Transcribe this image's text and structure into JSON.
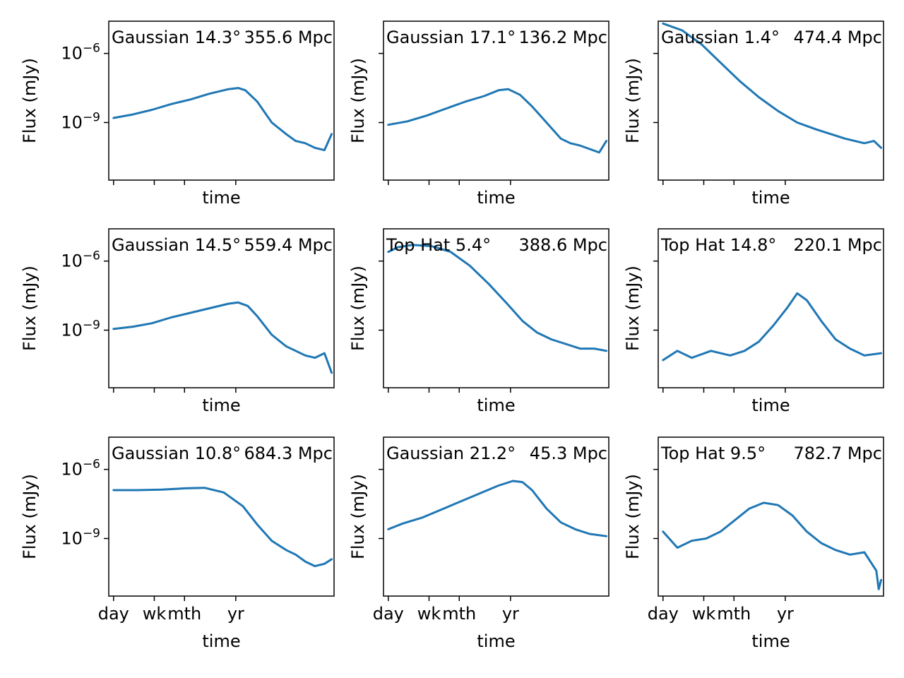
{
  "figure": {
    "line_color": "#1f77b4"
  },
  "chart_data": [
    {
      "type": "line",
      "title": "",
      "annotations": [
        "Gaussian 14.3°",
        "355.6 Mpc"
      ],
      "xlabel": "time",
      "ylabel": "Flux (mJy)",
      "x_scale": "log",
      "y_scale": "log",
      "x_ticks": [
        "day",
        "wk",
        "mth",
        "yr"
      ],
      "x_tick_labels_visible": false,
      "y_ticks": [
        "10^-6",
        "10^-9"
      ],
      "y_tick_labels_visible": true,
      "ylim": [
        "1e-11.5",
        "1e-4.6"
      ],
      "grid": false,
      "x_time": [
        "day",
        "wk",
        "mth",
        "yr"
      ],
      "points": [
        [
          0.0,
          -8.8
        ],
        [
          0.4,
          -8.65
        ],
        [
          0.8,
          -8.45
        ],
        [
          1.2,
          -8.2
        ],
        [
          1.6,
          -8.0
        ],
        [
          2.0,
          -7.75
        ],
        [
          2.4,
          -7.55
        ],
        [
          2.6,
          -7.5
        ],
        [
          2.75,
          -7.6
        ],
        [
          3.0,
          -8.1
        ],
        [
          3.3,
          -9.0
        ],
        [
          3.6,
          -9.5
        ],
        [
          3.8,
          -9.8
        ],
        [
          4.0,
          -9.9
        ],
        [
          4.2,
          -10.1
        ],
        [
          4.4,
          -10.2
        ],
        [
          4.55,
          -9.5
        ]
      ]
    },
    {
      "type": "line",
      "title": "",
      "annotations": [
        "Gaussian 17.1°",
        "136.2 Mpc"
      ],
      "xlabel": "time",
      "ylabel": "Flux (mJy)",
      "x_scale": "log",
      "y_scale": "log",
      "x_ticks": [
        "day",
        "wk",
        "mth",
        "yr"
      ],
      "x_tick_labels_visible": false,
      "y_ticks": [
        "10^-6",
        "10^-9"
      ],
      "y_tick_labels_visible": false,
      "ylim": [
        "1e-11.5",
        "1e-4.6"
      ],
      "grid": false,
      "points": [
        [
          0.0,
          -9.1
        ],
        [
          0.4,
          -8.95
        ],
        [
          0.8,
          -8.7
        ],
        [
          1.2,
          -8.4
        ],
        [
          1.6,
          -8.1
        ],
        [
          2.0,
          -7.85
        ],
        [
          2.3,
          -7.6
        ],
        [
          2.5,
          -7.55
        ],
        [
          2.75,
          -7.8
        ],
        [
          3.0,
          -8.3
        ],
        [
          3.3,
          -9.0
        ],
        [
          3.6,
          -9.7
        ],
        [
          3.8,
          -9.9
        ],
        [
          4.0,
          -10.0
        ],
        [
          4.2,
          -10.15
        ],
        [
          4.4,
          -10.3
        ],
        [
          4.55,
          -9.8
        ]
      ]
    },
    {
      "type": "line",
      "title": "",
      "annotations": [
        "Gaussian 1.4°",
        "474.4 Mpc"
      ],
      "xlabel": "time",
      "ylabel": "Flux (mJy)",
      "x_scale": "log",
      "y_scale": "log",
      "x_ticks": [
        "day",
        "wk",
        "mth",
        "yr"
      ],
      "x_tick_labels_visible": false,
      "y_ticks": [
        "10^-6",
        "10^-9"
      ],
      "y_tick_labels_visible": false,
      "ylim": [
        "1e-11.5",
        "1e-4.6"
      ],
      "grid": false,
      "points": [
        [
          0.0,
          -4.7
        ],
        [
          0.4,
          -5.0
        ],
        [
          0.8,
          -5.6
        ],
        [
          1.2,
          -6.4
        ],
        [
          1.6,
          -7.2
        ],
        [
          2.0,
          -7.9
        ],
        [
          2.4,
          -8.5
        ],
        [
          2.8,
          -9.0
        ],
        [
          3.2,
          -9.3
        ],
        [
          3.5,
          -9.5
        ],
        [
          3.8,
          -9.7
        ],
        [
          4.0,
          -9.8
        ],
        [
          4.2,
          -9.9
        ],
        [
          4.4,
          -9.8
        ],
        [
          4.55,
          -10.1
        ]
      ]
    },
    {
      "type": "line",
      "title": "",
      "annotations": [
        "Gaussian 14.5°",
        "559.4 Mpc"
      ],
      "xlabel": "time",
      "ylabel": "Flux (mJy)",
      "x_scale": "log",
      "y_scale": "log",
      "x_ticks": [
        "day",
        "wk",
        "mth",
        "yr"
      ],
      "x_tick_labels_visible": false,
      "y_ticks": [
        "10^-6",
        "10^-9"
      ],
      "y_tick_labels_visible": true,
      "ylim": [
        "1e-11.5",
        "1e-4.6"
      ],
      "grid": false,
      "points": [
        [
          0.0,
          -8.95
        ],
        [
          0.4,
          -8.85
        ],
        [
          0.8,
          -8.7
        ],
        [
          1.2,
          -8.45
        ],
        [
          1.6,
          -8.25
        ],
        [
          2.0,
          -8.05
        ],
        [
          2.4,
          -7.85
        ],
        [
          2.6,
          -7.8
        ],
        [
          2.8,
          -7.95
        ],
        [
          3.0,
          -8.4
        ],
        [
          3.3,
          -9.2
        ],
        [
          3.6,
          -9.7
        ],
        [
          3.8,
          -9.9
        ],
        [
          4.0,
          -10.1
        ],
        [
          4.2,
          -10.2
        ],
        [
          4.4,
          -10.0
        ],
        [
          4.55,
          -10.85
        ]
      ]
    },
    {
      "type": "line",
      "title": "",
      "annotations": [
        "Top Hat 5.4°",
        "388.6 Mpc"
      ],
      "xlabel": "time",
      "ylabel": "Flux (mJy)",
      "x_scale": "log",
      "y_scale": "log",
      "x_ticks": [
        "day",
        "wk",
        "mth",
        "yr"
      ],
      "x_tick_labels_visible": false,
      "y_ticks": [
        "10^-6",
        "10^-9"
      ],
      "y_tick_labels_visible": false,
      "ylim": [
        "1e-11.5",
        "1e-4.6"
      ],
      "grid": false,
      "points": [
        [
          0.0,
          -5.6
        ],
        [
          0.2,
          -5.4
        ],
        [
          0.5,
          -5.3
        ],
        [
          0.9,
          -5.35
        ],
        [
          1.3,
          -5.6
        ],
        [
          1.7,
          -6.2
        ],
        [
          2.1,
          -7.0
        ],
        [
          2.5,
          -7.9
        ],
        [
          2.8,
          -8.6
        ],
        [
          3.1,
          -9.1
        ],
        [
          3.4,
          -9.4
        ],
        [
          3.7,
          -9.6
        ],
        [
          4.0,
          -9.8
        ],
        [
          4.3,
          -9.8
        ],
        [
          4.55,
          -9.9
        ]
      ]
    },
    {
      "type": "line",
      "title": "",
      "annotations": [
        "Top Hat 14.8°",
        "220.1 Mpc"
      ],
      "xlabel": "time",
      "ylabel": "Flux (mJy)",
      "x_scale": "log",
      "y_scale": "log",
      "x_ticks": [
        "day",
        "wk",
        "mth",
        "yr"
      ],
      "x_tick_labels_visible": false,
      "y_ticks": [
        "10^-6",
        "10^-9"
      ],
      "y_tick_labels_visible": false,
      "ylim": [
        "1e-11.5",
        "1e-4.6"
      ],
      "grid": false,
      "points": [
        [
          0.0,
          -10.3
        ],
        [
          0.3,
          -9.9
        ],
        [
          0.6,
          -10.2
        ],
        [
          1.0,
          -9.9
        ],
        [
          1.4,
          -10.1
        ],
        [
          1.7,
          -9.9
        ],
        [
          2.0,
          -9.5
        ],
        [
          2.3,
          -8.8
        ],
        [
          2.6,
          -8.0
        ],
        [
          2.8,
          -7.4
        ],
        [
          3.0,
          -7.7
        ],
        [
          3.3,
          -8.6
        ],
        [
          3.6,
          -9.4
        ],
        [
          3.9,
          -9.8
        ],
        [
          4.2,
          -10.1
        ],
        [
          4.55,
          -10.0
        ]
      ]
    },
    {
      "type": "line",
      "title": "",
      "annotations": [
        "Gaussian 10.8°",
        "684.3 Mpc"
      ],
      "xlabel": "time",
      "ylabel": "Flux (mJy)",
      "x_scale": "log",
      "y_scale": "log",
      "x_ticks": [
        "day",
        "wk",
        "mth",
        "yr"
      ],
      "x_tick_labels_visible": true,
      "y_ticks": [
        "10^-6",
        "10^-9"
      ],
      "y_tick_labels_visible": true,
      "ylim": [
        "1e-11.5",
        "1e-4.6"
      ],
      "grid": false,
      "points": [
        [
          0.0,
          -6.9
        ],
        [
          0.5,
          -6.9
        ],
        [
          1.0,
          -6.88
        ],
        [
          1.5,
          -6.82
        ],
        [
          1.9,
          -6.8
        ],
        [
          2.3,
          -7.0
        ],
        [
          2.7,
          -7.6
        ],
        [
          3.0,
          -8.4
        ],
        [
          3.3,
          -9.1
        ],
        [
          3.6,
          -9.5
        ],
        [
          3.8,
          -9.7
        ],
        [
          4.0,
          -10.0
        ],
        [
          4.2,
          -10.2
        ],
        [
          4.4,
          -10.1
        ],
        [
          4.55,
          -9.9
        ]
      ]
    },
    {
      "type": "line",
      "title": "",
      "annotations": [
        "Gaussian 21.2°",
        "45.3 Mpc"
      ],
      "xlabel": "time",
      "ylabel": "Flux (mJy)",
      "x_scale": "log",
      "y_scale": "log",
      "x_ticks": [
        "day",
        "wk",
        "mth",
        "yr"
      ],
      "x_tick_labels_visible": true,
      "y_ticks": [
        "10^-6",
        "10^-9"
      ],
      "y_tick_labels_visible": false,
      "ylim": [
        "1e-11.5",
        "1e-4.6"
      ],
      "grid": false,
      "points": [
        [
          0.0,
          -8.6
        ],
        [
          0.3,
          -8.35
        ],
        [
          0.7,
          -8.1
        ],
        [
          1.1,
          -7.75
        ],
        [
          1.5,
          -7.4
        ],
        [
          1.9,
          -7.05
        ],
        [
          2.3,
          -6.7
        ],
        [
          2.6,
          -6.5
        ],
        [
          2.8,
          -6.55
        ],
        [
          3.0,
          -6.9
        ],
        [
          3.3,
          -7.7
        ],
        [
          3.6,
          -8.3
        ],
        [
          3.9,
          -8.6
        ],
        [
          4.2,
          -8.8
        ],
        [
          4.55,
          -8.9
        ]
      ]
    },
    {
      "type": "line",
      "title": "",
      "annotations": [
        "Top Hat 9.5°",
        "782.7 Mpc"
      ],
      "xlabel": "time",
      "ylabel": "Flux (mJy)",
      "x_scale": "log",
      "y_scale": "log",
      "x_ticks": [
        "day",
        "wk",
        "mth",
        "yr"
      ],
      "x_tick_labels_visible": true,
      "y_ticks": [
        "10^-6",
        "10^-9"
      ],
      "y_tick_labels_visible": false,
      "ylim": [
        "1e-11.5",
        "1e-4.6"
      ],
      "grid": false,
      "points": [
        [
          0.0,
          -8.7
        ],
        [
          0.3,
          -9.4
        ],
        [
          0.6,
          -9.1
        ],
        [
          0.9,
          -9.0
        ],
        [
          1.2,
          -8.7
        ],
        [
          1.5,
          -8.2
        ],
        [
          1.8,
          -7.7
        ],
        [
          2.1,
          -7.45
        ],
        [
          2.4,
          -7.55
        ],
        [
          2.7,
          -8.0
        ],
        [
          3.0,
          -8.7
        ],
        [
          3.3,
          -9.2
        ],
        [
          3.6,
          -9.5
        ],
        [
          3.9,
          -9.7
        ],
        [
          4.2,
          -9.6
        ],
        [
          4.45,
          -10.4
        ],
        [
          4.5,
          -11.2
        ],
        [
          4.55,
          -10.8
        ]
      ]
    }
  ]
}
